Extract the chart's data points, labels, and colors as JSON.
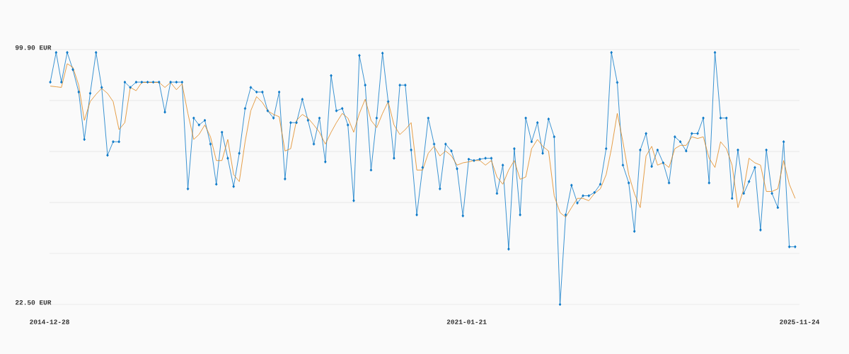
{
  "chart_data": {
    "type": "line",
    "x": [
      "2015-01",
      "2015-02",
      "2015-03",
      "2015-04",
      "2015-05",
      "2015-06",
      "2015-07",
      "2015-08",
      "2015-09",
      "2015-10",
      "2015-11",
      "2015-12",
      "2016-01",
      "2016-02",
      "2016-03",
      "2016-04",
      "2016-05",
      "2016-06",
      "2016-07",
      "2016-08",
      "2016-09",
      "2016-10",
      "2016-11",
      "2016-12",
      "2017-01",
      "2017-02",
      "2017-03",
      "2017-04",
      "2017-05",
      "2017-06",
      "2017-07",
      "2017-08",
      "2017-09",
      "2017-10",
      "2017-11",
      "2017-12",
      "2018-01",
      "2018-02",
      "2018-03",
      "2018-04",
      "2018-05",
      "2018-06",
      "2018-07",
      "2018-08",
      "2018-09",
      "2018-10",
      "2018-11",
      "2018-12",
      "2019-01",
      "2019-02",
      "2019-03",
      "2019-04",
      "2019-05",
      "2019-06",
      "2019-07",
      "2019-08",
      "2019-09",
      "2019-10",
      "2019-11",
      "2019-12",
      "2020-01",
      "2020-02",
      "2020-03",
      "2020-04",
      "2020-05",
      "2020-06",
      "2020-07",
      "2020-08",
      "2020-09",
      "2020-10",
      "2020-11",
      "2020-12",
      "2021-01",
      "2021-02",
      "2021-03",
      "2021-04",
      "2021-05",
      "2021-06",
      "2021-07",
      "2021-08",
      "2021-09",
      "2021-10",
      "2021-11",
      "2021-12",
      "2022-01",
      "2022-02",
      "2022-03",
      "2022-04",
      "2022-05",
      "2022-06",
      "2022-07",
      "2022-08",
      "2022-09",
      "2022-10",
      "2022-11",
      "2022-12",
      "2023-01",
      "2023-02",
      "2023-03",
      "2023-04",
      "2023-05",
      "2023-06",
      "2023-07",
      "2023-08",
      "2023-09",
      "2023-10",
      "2023-11",
      "2023-12",
      "2024-01",
      "2024-02",
      "2024-03",
      "2024-04",
      "2024-05",
      "2024-06",
      "2024-07",
      "2024-08",
      "2024-09",
      "2024-10",
      "2024-11",
      "2024-12",
      "2025-01",
      "2025-02",
      "2025-03",
      "2025-04",
      "2025-05",
      "2025-06",
      "2025-07",
      "2025-08",
      "2025-09",
      "2025-10",
      "2025-11"
    ],
    "series": [
      {
        "color": "#0a78c8",
        "marker": "diamond",
        "values": [
          90.0,
          99.0,
          90.0,
          99.0,
          93.8,
          87.0,
          72.6,
          86.6,
          99.0,
          88.4,
          67.8,
          71.9,
          71.9,
          90.0,
          88.4,
          90.0,
          90.0,
          90.0,
          90.0,
          90.0,
          80.9,
          90.0,
          90.0,
          90.0,
          57.6,
          79.1,
          77.0,
          78.4,
          71.2,
          59.0,
          74.8,
          66.9,
          58.3,
          68.4,
          82.0,
          88.4,
          87.0,
          87.0,
          81.3,
          79.1,
          87.0,
          60.6,
          77.7,
          77.7,
          84.8,
          78.4,
          71.2,
          79.1,
          65.8,
          92.0,
          81.3,
          82.0,
          77.0,
          54.0,
          98.1,
          89.1,
          63.3,
          79.1,
          98.8,
          84.1,
          66.9,
          89.1,
          89.1,
          69.4,
          49.7,
          64.1,
          79.1,
          71.2,
          57.6,
          71.2,
          69.1,
          63.7,
          49.4,
          66.6,
          66.2,
          66.6,
          66.9,
          66.9,
          56.2,
          64.8,
          39.3,
          69.8,
          49.7,
          79.1,
          71.9,
          77.7,
          68.4,
          78.8,
          73.4,
          22.5,
          49.7,
          58.7,
          53.3,
          55.5,
          55.5,
          56.5,
          59.0,
          69.8,
          99.0,
          89.9,
          64.8,
          59.4,
          44.7,
          69.4,
          74.4,
          64.4,
          69.4,
          65.5,
          59.4,
          73.4,
          71.9,
          69.1,
          74.4,
          74.4,
          79.1,
          59.4,
          99.0,
          79.1,
          79.1,
          54.7,
          69.4,
          56.2,
          59.8,
          64.1,
          45.1,
          69.4,
          56.2,
          51.9,
          71.9,
          40.0,
          40.0
        ]
      },
      {
        "color": "#e0861a",
        "marker": "none",
        "values": [
          88.8,
          88.6,
          88.4,
          95.6,
          94.5,
          89.1,
          78.4,
          84.1,
          86.3,
          88.1,
          86.6,
          84.1,
          75.6,
          77.7,
          88.4,
          87.4,
          89.9,
          89.9,
          89.9,
          89.9,
          88.4,
          89.9,
          87.7,
          89.5,
          80.5,
          72.6,
          74.1,
          77.0,
          73.4,
          66.2,
          66.2,
          72.6,
          61.9,
          59.8,
          71.9,
          81.3,
          85.6,
          83.8,
          81.3,
          80.2,
          79.5,
          69.1,
          69.8,
          78.4,
          80.2,
          79.1,
          77.0,
          74.8,
          71.2,
          74.8,
          77.7,
          80.5,
          79.1,
          74.8,
          80.5,
          84.8,
          78.4,
          76.2,
          80.5,
          84.1,
          77.0,
          74.1,
          75.6,
          77.7,
          63.3,
          63.3,
          68.4,
          70.5,
          67.6,
          69.1,
          67.6,
          64.8,
          65.5,
          65.8,
          66.2,
          66.2,
          64.8,
          66.2,
          61.2,
          59.0,
          63.3,
          66.2,
          60.5,
          61.2,
          69.8,
          72.6,
          70.5,
          69.1,
          55.5,
          50.4,
          49.0,
          51.9,
          54.7,
          54.7,
          54.0,
          56.2,
          57.6,
          61.9,
          69.8,
          80.5,
          71.9,
          61.9,
          56.2,
          51.9,
          67.6,
          70.5,
          64.8,
          65.5,
          64.1,
          69.8,
          70.8,
          70.8,
          73.4,
          72.9,
          73.4,
          66.9,
          64.1,
          71.9,
          69.8,
          64.8,
          51.9,
          57.6,
          66.9,
          65.5,
          64.8,
          56.8,
          56.8,
          57.6,
          66.2,
          59.0,
          54.7
        ]
      }
    ],
    "xlim": [
      "2014-12-28",
      "2025-11-24"
    ],
    "xticks": [
      "2014-12-28",
      "2021-01-21",
      "2025-11-24"
    ],
    "ylim": [
      22.5,
      99.9
    ],
    "yticks": [
      {
        "value": 22.5,
        "label": "22.50 EUR"
      },
      {
        "value": 37.98,
        "label": null
      },
      {
        "value": 53.46,
        "label": null
      },
      {
        "value": 68.94,
        "label": null
      },
      {
        "value": 84.42,
        "label": null
      },
      {
        "value": 99.9,
        "label": "99.90 EUR"
      }
    ],
    "grid": "y",
    "line_style": "solid"
  }
}
